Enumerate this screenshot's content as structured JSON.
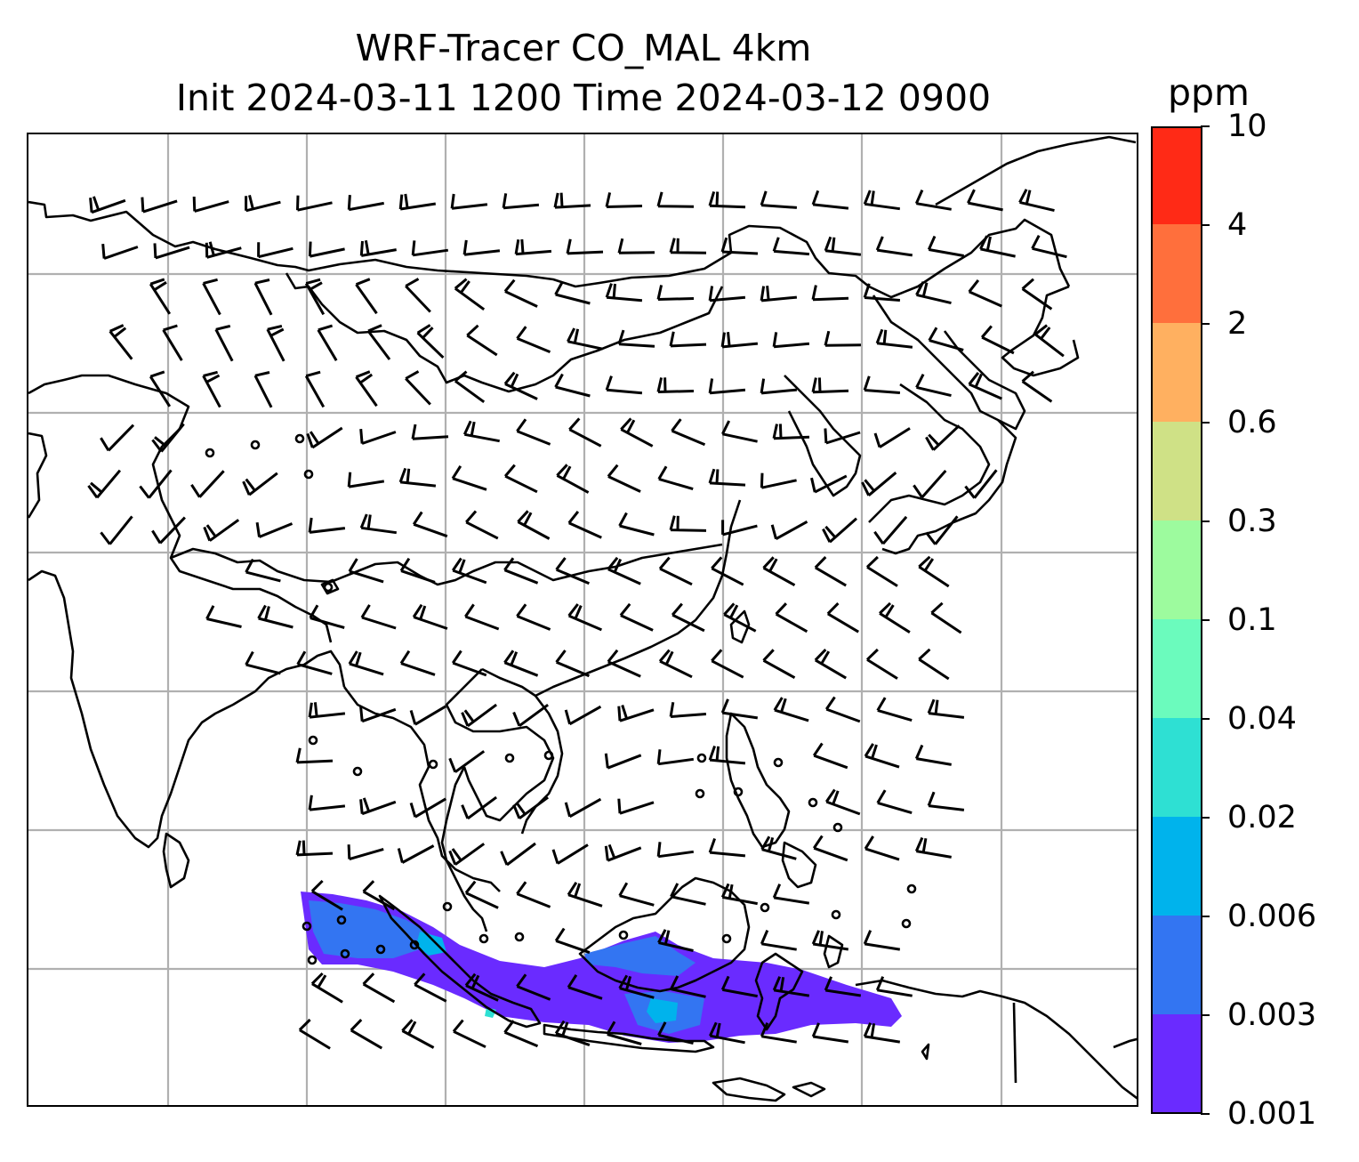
{
  "title": {
    "line1": "WRF-Tracer CO_MAL 4km",
    "line2": "Init 2024-03-11 1200 Time 2024-03-12 0900"
  },
  "colorbar": {
    "unit": "ppm",
    "levels": [
      "0.001",
      "0.003",
      "0.006",
      "0.02",
      "0.04",
      "0.1",
      "0.3",
      "0.6",
      "2",
      "4",
      "10"
    ],
    "colors": [
      "#6a2bff",
      "#3375f2",
      "#00b3ec",
      "#2ee0d3",
      "#6bfbbd",
      "#9dfb9e",
      "#cfe186",
      "#ffb060",
      "#ff6f3c",
      "#ff2a16"
    ]
  },
  "map": {
    "gridlines": "on",
    "gridline_color": "#b0b0b0",
    "coastline_color": "#000000",
    "wind_barb_color": "#000000",
    "tracer_shading_colors": [
      "#6a2bff",
      "#3375f2",
      "#00b3ec",
      "#2ee0d3"
    ]
  }
}
